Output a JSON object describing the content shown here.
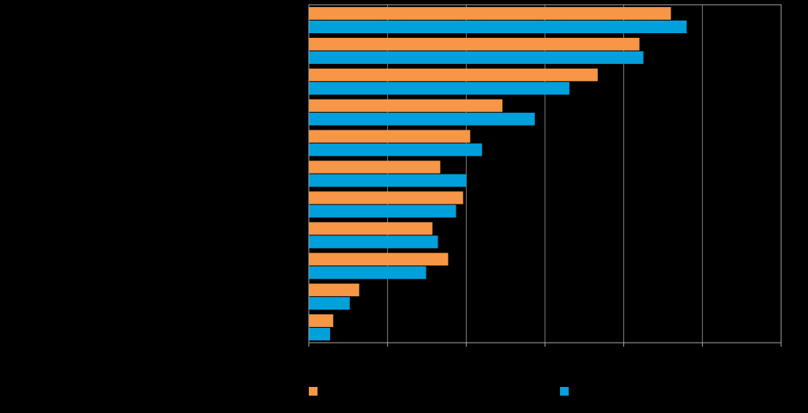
{
  "chart_data": {
    "type": "bar",
    "orientation": "horizontal",
    "categories": [
      "",
      "",
      "",
      "",
      "",
      "",
      "",
      "",
      "",
      "",
      ""
    ],
    "series": [
      {
        "name": "",
        "color": "#F79646",
        "values": [
          46,
          42,
          36.7,
          24.6,
          20.5,
          16.7,
          19.6,
          15.7,
          17.7,
          6.4,
          3.1
        ]
      },
      {
        "name": "",
        "color": "#00A0DC",
        "values": [
          48,
          42.5,
          33.1,
          28.7,
          22,
          20,
          18.7,
          16.4,
          14.9,
          5.2,
          2.7
        ]
      }
    ],
    "xlim": [
      0,
      60
    ],
    "x_gridlines": [
      10,
      20,
      30,
      40,
      50
    ],
    "grid": true,
    "legend_position": "bottom",
    "background": "#000000",
    "gridline_color": "#7F7F7F",
    "axis_color": "#A6A6A6"
  }
}
